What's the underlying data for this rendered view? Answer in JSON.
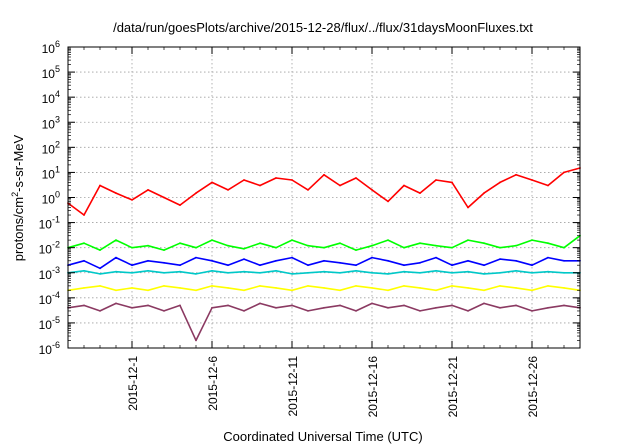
{
  "chart_data": {
    "type": "line",
    "title": "/data/run/goesPlots/archive/2015-12-28/flux/../flux/31daysMoonFluxes.txt",
    "xlabel": "Coordinated Universal Time (UTC)",
    "ylabel_parts": [
      "protons/cm",
      "2",
      "-s-sr-MeV"
    ],
    "yscale": "log",
    "ylim": [
      1e-06,
      1000000.0
    ],
    "xlim": [
      "2015-11-27",
      "2015-12-29"
    ],
    "grid": true,
    "x_tick_labels": [
      "2015-12-1",
      "2015-12-6",
      "2015-12-11",
      "2015-12-16",
      "2015-12-21",
      "2015-12-26"
    ],
    "x_tick_dates": [
      "2015-12-01",
      "2015-12-06",
      "2015-12-11",
      "2015-12-16",
      "2015-12-21",
      "2015-12-26"
    ],
    "y_ticks": [
      {
        "base": "10",
        "exp": "-6",
        "value": 1e-06
      },
      {
        "base": "10",
        "exp": "-5",
        "value": 1e-05
      },
      {
        "base": "10",
        "exp": "-4",
        "value": 0.0001
      },
      {
        "base": "10",
        "exp": "-3",
        "value": 0.001
      },
      {
        "base": "10",
        "exp": "-2",
        "value": 0.01
      },
      {
        "base": "10",
        "exp": "-1",
        "value": 0.1
      },
      {
        "base": "10",
        "exp": "0",
        "value": 1
      },
      {
        "base": "10",
        "exp": "1",
        "value": 10
      },
      {
        "base": "10",
        "exp": "2",
        "value": 100
      },
      {
        "base": "10",
        "exp": "3",
        "value": 1000
      },
      {
        "base": "10",
        "exp": "4",
        "value": 10000
      },
      {
        "base": "10",
        "exp": "5",
        "value": 100000
      },
      {
        "base": "10",
        "exp": "6",
        "value": 1000000
      }
    ],
    "series": [
      {
        "color": "#ff0000",
        "x": [
          "2015-11-27",
          "2015-11-28",
          "2015-11-29",
          "2015-11-30",
          "2015-12-01",
          "2015-12-02",
          "2015-12-03",
          "2015-12-04",
          "2015-12-05",
          "2015-12-06",
          "2015-12-07",
          "2015-12-08",
          "2015-12-09",
          "2015-12-10",
          "2015-12-11",
          "2015-12-12",
          "2015-12-13",
          "2015-12-14",
          "2015-12-15",
          "2015-12-16",
          "2015-12-17",
          "2015-12-18",
          "2015-12-19",
          "2015-12-20",
          "2015-12-21",
          "2015-12-22",
          "2015-12-23",
          "2015-12-24",
          "2015-12-25",
          "2015-12-26",
          "2015-12-27",
          "2015-12-28",
          "2015-12-29"
        ],
        "values": [
          0.6,
          0.2,
          3,
          1.5,
          0.8,
          2,
          1,
          0.5,
          1.5,
          4,
          2,
          5,
          3,
          6,
          5,
          2,
          8,
          3,
          6,
          2,
          0.7,
          3,
          1.5,
          5,
          4,
          0.4,
          1.5,
          4,
          8,
          5,
          3,
          10,
          15
        ]
      },
      {
        "color": "#00ff00",
        "x": [
          "2015-11-27",
          "2015-11-28",
          "2015-11-29",
          "2015-11-30",
          "2015-12-01",
          "2015-12-02",
          "2015-12-03",
          "2015-12-04",
          "2015-12-05",
          "2015-12-06",
          "2015-12-07",
          "2015-12-08",
          "2015-12-09",
          "2015-12-10",
          "2015-12-11",
          "2015-12-12",
          "2015-12-13",
          "2015-12-14",
          "2015-12-15",
          "2015-12-16",
          "2015-12-17",
          "2015-12-18",
          "2015-12-19",
          "2015-12-20",
          "2015-12-21",
          "2015-12-22",
          "2015-12-23",
          "2015-12-24",
          "2015-12-25",
          "2015-12-26",
          "2015-12-27",
          "2015-12-28",
          "2015-12-29"
        ],
        "values": [
          0.01,
          0.015,
          0.008,
          0.02,
          0.01,
          0.012,
          0.008,
          0.015,
          0.01,
          0.02,
          0.012,
          0.009,
          0.015,
          0.01,
          0.02,
          0.012,
          0.01,
          0.015,
          0.008,
          0.012,
          0.02,
          0.01,
          0.015,
          0.012,
          0.01,
          0.02,
          0.015,
          0.01,
          0.012,
          0.02,
          0.015,
          0.01,
          0.03
        ]
      },
      {
        "color": "#0000ff",
        "x": [
          "2015-11-27",
          "2015-11-28",
          "2015-11-29",
          "2015-11-30",
          "2015-12-01",
          "2015-12-02",
          "2015-12-03",
          "2015-12-04",
          "2015-12-05",
          "2015-12-06",
          "2015-12-07",
          "2015-12-08",
          "2015-12-09",
          "2015-12-10",
          "2015-12-11",
          "2015-12-12",
          "2015-12-13",
          "2015-12-14",
          "2015-12-15",
          "2015-12-16",
          "2015-12-17",
          "2015-12-18",
          "2015-12-19",
          "2015-12-20",
          "2015-12-21",
          "2015-12-22",
          "2015-12-23",
          "2015-12-24",
          "2015-12-25",
          "2015-12-26",
          "2015-12-27",
          "2015-12-28",
          "2015-12-29"
        ],
        "values": [
          0.002,
          0.003,
          0.0015,
          0.004,
          0.002,
          0.003,
          0.0025,
          0.002,
          0.004,
          0.003,
          0.002,
          0.0035,
          0.002,
          0.003,
          0.004,
          0.002,
          0.003,
          0.0025,
          0.002,
          0.004,
          0.003,
          0.002,
          0.0025,
          0.004,
          0.002,
          0.003,
          0.002,
          0.0035,
          0.003,
          0.002,
          0.004,
          0.003,
          0.003
        ]
      },
      {
        "color": "#00c8c8",
        "x": [
          "2015-11-27",
          "2015-11-28",
          "2015-11-29",
          "2015-11-30",
          "2015-12-01",
          "2015-12-02",
          "2015-12-03",
          "2015-12-04",
          "2015-12-05",
          "2015-12-06",
          "2015-12-07",
          "2015-12-08",
          "2015-12-09",
          "2015-12-10",
          "2015-12-11",
          "2015-12-12",
          "2015-12-13",
          "2015-12-14",
          "2015-12-15",
          "2015-12-16",
          "2015-12-17",
          "2015-12-18",
          "2015-12-19",
          "2015-12-20",
          "2015-12-21",
          "2015-12-22",
          "2015-12-23",
          "2015-12-24",
          "2015-12-25",
          "2015-12-26",
          "2015-12-27",
          "2015-12-28",
          "2015-12-29"
        ],
        "values": [
          0.001,
          0.0012,
          0.0009,
          0.0011,
          0.001,
          0.0012,
          0.001,
          0.0011,
          0.0009,
          0.0012,
          0.001,
          0.0011,
          0.001,
          0.0012,
          0.0009,
          0.001,
          0.0011,
          0.001,
          0.0012,
          0.001,
          0.0009,
          0.0011,
          0.001,
          0.0012,
          0.001,
          0.0011,
          0.0009,
          0.001,
          0.0012,
          0.001,
          0.0011,
          0.001,
          0.001
        ]
      },
      {
        "color": "#ffff00",
        "x": [
          "2015-11-27",
          "2015-11-28",
          "2015-11-29",
          "2015-11-30",
          "2015-12-01",
          "2015-12-02",
          "2015-12-03",
          "2015-12-04",
          "2015-12-05",
          "2015-12-06",
          "2015-12-07",
          "2015-12-08",
          "2015-12-09",
          "2015-12-10",
          "2015-12-11",
          "2015-12-12",
          "2015-12-13",
          "2015-12-14",
          "2015-12-15",
          "2015-12-16",
          "2015-12-17",
          "2015-12-18",
          "2015-12-19",
          "2015-12-20",
          "2015-12-21",
          "2015-12-22",
          "2015-12-23",
          "2015-12-24",
          "2015-12-25",
          "2015-12-26",
          "2015-12-27",
          "2015-12-28",
          "2015-12-29"
        ],
        "values": [
          0.0002,
          0.00025,
          0.0003,
          0.0002,
          0.00025,
          0.0002,
          0.0003,
          0.00025,
          0.0002,
          0.0003,
          0.00025,
          0.0002,
          0.0003,
          0.00025,
          0.0002,
          0.0003,
          0.00025,
          0.0002,
          0.0003,
          0.00025,
          0.0002,
          0.0003,
          0.00025,
          0.0002,
          0.0003,
          0.00025,
          0.0002,
          0.0003,
          0.00025,
          0.0002,
          0.0003,
          0.00025,
          0.0002
        ]
      },
      {
        "color": "#8b3a62",
        "x": [
          "2015-11-27",
          "2015-11-28",
          "2015-11-29",
          "2015-11-30",
          "2015-12-01",
          "2015-12-02",
          "2015-12-03",
          "2015-12-04",
          "2015-12-05",
          "2015-12-06",
          "2015-12-07",
          "2015-12-08",
          "2015-12-09",
          "2015-12-10",
          "2015-12-11",
          "2015-12-12",
          "2015-12-13",
          "2015-12-14",
          "2015-12-15",
          "2015-12-16",
          "2015-12-17",
          "2015-12-18",
          "2015-12-19",
          "2015-12-20",
          "2015-12-21",
          "2015-12-22",
          "2015-12-23",
          "2015-12-24",
          "2015-12-25",
          "2015-12-26",
          "2015-12-27",
          "2015-12-28",
          "2015-12-29"
        ],
        "values": [
          4e-05,
          5e-05,
          3e-05,
          6e-05,
          4e-05,
          5e-05,
          3e-05,
          5e-05,
          2e-06,
          4e-05,
          5e-05,
          3e-05,
          6e-05,
          4e-05,
          5e-05,
          3e-05,
          4e-05,
          5e-05,
          3e-05,
          6e-05,
          4e-05,
          5e-05,
          3e-05,
          4e-05,
          5e-05,
          3e-05,
          6e-05,
          4e-05,
          5e-05,
          3e-05,
          4e-05,
          5e-05,
          4e-05
        ]
      }
    ]
  }
}
